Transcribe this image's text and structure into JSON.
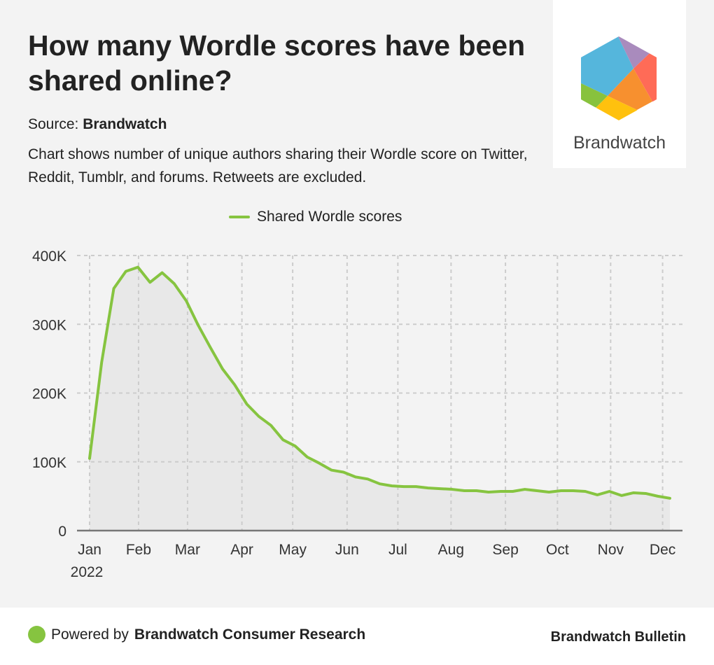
{
  "header": {
    "title": "How many Wordle scores have been shared online?",
    "source_label": "Source:",
    "source_name": "Brandwatch",
    "description": "Chart shows number of unique authors sharing their Wordle score on Twitter, Reddit, Tumblr, and forums. Retweets are excluded.",
    "logo_text": "Brandwatch"
  },
  "colors": {
    "line": "#86c440",
    "area": "#e8e8e8",
    "grid": "#cccccc",
    "axis": "#777777"
  },
  "chart_data": {
    "type": "area",
    "title": "How many Wordle scores have been shared online?",
    "xlabel": "",
    "ylabel": "",
    "x_unit": "week index of 2022",
    "ylim": [
      0,
      400000
    ],
    "yticks": [
      {
        "value": 0,
        "label": "0"
      },
      {
        "value": 100000,
        "label": "100K"
      },
      {
        "value": 200000,
        "label": "200K"
      },
      {
        "value": 300000,
        "label": "300K"
      },
      {
        "value": 400000,
        "label": "400K"
      }
    ],
    "xticks": [
      {
        "value": 0,
        "label": "Jan",
        "sublabel": "2022"
      },
      {
        "value": 4.05,
        "label": "Feb"
      },
      {
        "value": 8.1,
        "label": "Mar"
      },
      {
        "value": 12.6,
        "label": "Apr"
      },
      {
        "value": 16.8,
        "label": "May"
      },
      {
        "value": 21.3,
        "label": "Jun"
      },
      {
        "value": 25.5,
        "label": "Jul"
      },
      {
        "value": 29.9,
        "label": "Aug"
      },
      {
        "value": 34.4,
        "label": "Sep"
      },
      {
        "value": 38.7,
        "label": "Oct"
      },
      {
        "value": 43.1,
        "label": "Nov"
      },
      {
        "value": 47.4,
        "label": "Dec"
      }
    ],
    "grid": true,
    "legend_position": "top-center",
    "series": [
      {
        "name": "Shared Wordle scores",
        "values": [
          105000,
          245000,
          352000,
          377000,
          383000,
          361000,
          375000,
          359000,
          334000,
          298000,
          266000,
          235000,
          212000,
          184000,
          166000,
          153000,
          132000,
          123000,
          107000,
          98000,
          88000,
          85000,
          78000,
          75000,
          68000,
          65000,
          64000,
          64000,
          62000,
          61000,
          60000,
          58000,
          58000,
          56000,
          57000,
          57000,
          60000,
          58000,
          56000,
          58000,
          58000,
          57000,
          52000,
          57000,
          51000,
          55000,
          54000,
          50000,
          47000
        ]
      }
    ]
  },
  "footer": {
    "powered_prefix": "Powered by",
    "powered_name": "Brandwatch Consumer Research",
    "bulletin": "Brandwatch Bulletin"
  }
}
